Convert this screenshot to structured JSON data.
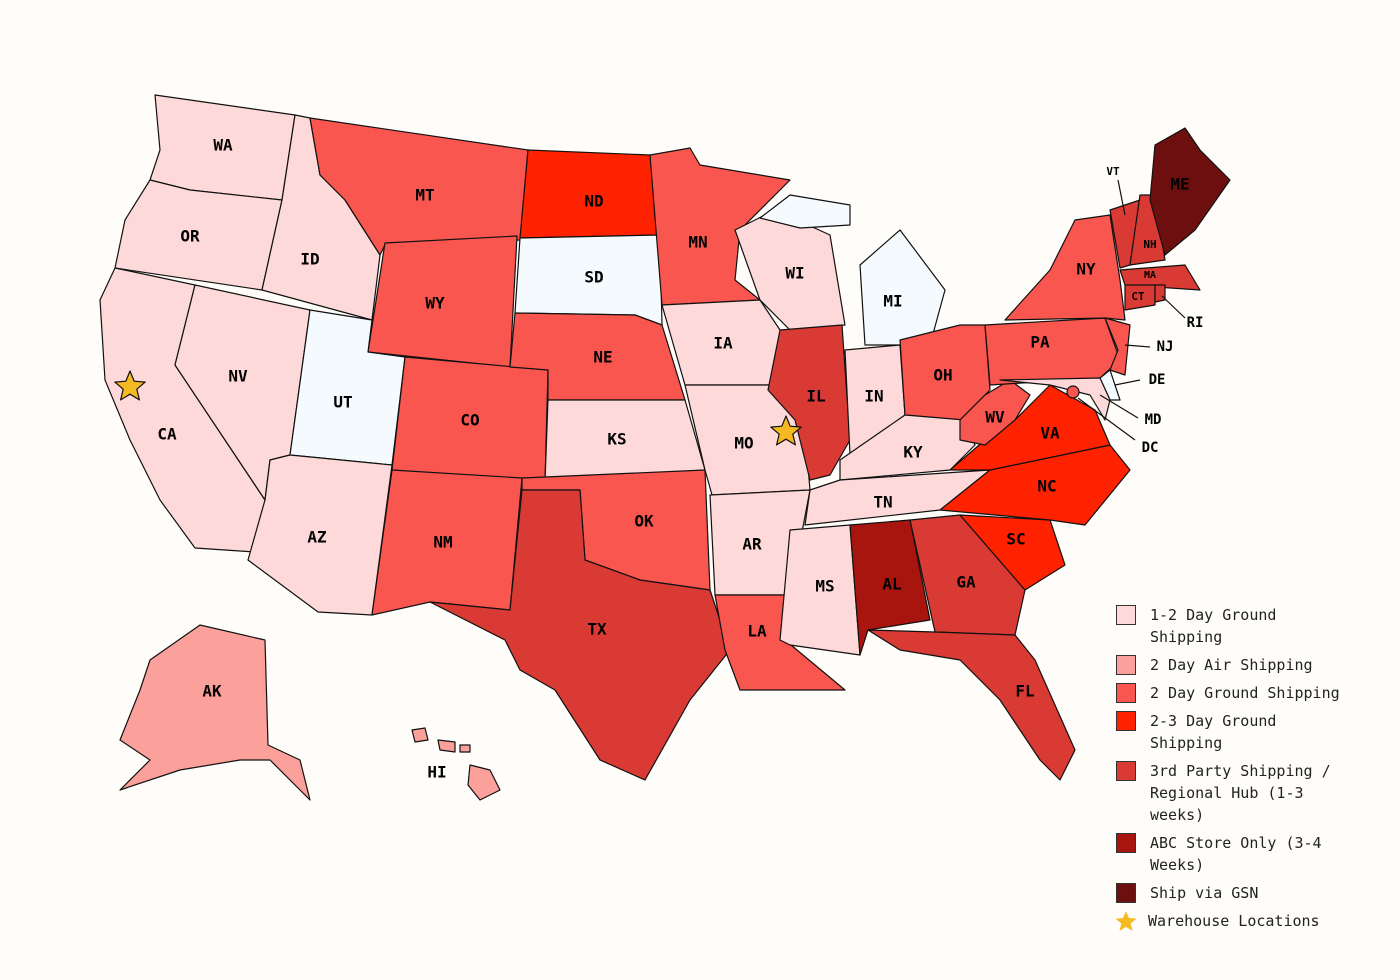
{
  "map": {
    "states": [
      {
        "label": "WA",
        "color": "#fdd9d9"
      },
      {
        "label": "OR",
        "color": "#fdd9d9"
      },
      {
        "label": "CA",
        "color": "#fdd9d9"
      },
      {
        "label": "NV",
        "color": "#fdd9d9"
      },
      {
        "label": "ID",
        "color": "#fdd9d9"
      },
      {
        "label": "MT",
        "color": "#f9564f"
      },
      {
        "label": "WY",
        "color": "#f9564f"
      },
      {
        "label": "UT",
        "color": "#f4fafd"
      },
      {
        "label": "AZ",
        "color": "#fdd9d9"
      },
      {
        "label": "CO",
        "color": "#f9564f"
      },
      {
        "label": "NM",
        "color": "#f9564f"
      },
      {
        "label": "ND",
        "color": "#ff2200"
      },
      {
        "label": "SD",
        "color": "#f4fafd"
      },
      {
        "label": "NE",
        "color": "#f9564f"
      },
      {
        "label": "KS",
        "color": "#fdd9d9"
      },
      {
        "label": "OK",
        "color": "#f9564f"
      },
      {
        "label": "TX",
        "color": "#d93a33"
      },
      {
        "label": "MN",
        "color": "#f9564f"
      },
      {
        "label": "IA",
        "color": "#fdd9d9"
      },
      {
        "label": "MO",
        "color": "#fdd9d9"
      },
      {
        "label": "AR",
        "color": "#fdd9d9"
      },
      {
        "label": "LA",
        "color": "#f9564f"
      },
      {
        "label": "WI",
        "color": "#fdd9d9"
      },
      {
        "label": "IL",
        "color": "#d93a33"
      },
      {
        "label": "MI",
        "color": "#f4fafd"
      },
      {
        "label": "IN",
        "color": "#fdd9d9"
      },
      {
        "label": "OH",
        "color": "#f9564f"
      },
      {
        "label": "KY",
        "color": "#fdd9d9"
      },
      {
        "label": "TN",
        "color": "#fdd9d9"
      },
      {
        "label": "MS",
        "color": "#fdd9d9"
      },
      {
        "label": "AL",
        "color": "#a8150f"
      },
      {
        "label": "GA",
        "color": "#d93a33"
      },
      {
        "label": "FL",
        "color": "#d93a33"
      },
      {
        "label": "SC",
        "color": "#ff2200"
      },
      {
        "label": "NC",
        "color": "#ff2200"
      },
      {
        "label": "VA",
        "color": "#ff2200"
      },
      {
        "label": "WV",
        "color": "#f9564f"
      },
      {
        "label": "PA",
        "color": "#f9564f"
      },
      {
        "label": "NY",
        "color": "#f9564f"
      },
      {
        "label": "NJ",
        "color": "#f9564f"
      },
      {
        "label": "DE",
        "color": "#f4fafd"
      },
      {
        "label": "MD",
        "color": "#fdd9d9"
      },
      {
        "label": "DC",
        "color": "#f9564f"
      },
      {
        "label": "MA",
        "color": "#d93a33"
      },
      {
        "label": "CT",
        "color": "#d93a33"
      },
      {
        "label": "RI",
        "color": "#d93a33"
      },
      {
        "label": "VT",
        "color": "#d93a33"
      },
      {
        "label": "NH",
        "color": "#d93a33"
      },
      {
        "label": "ME",
        "color": "#6e0f0f"
      },
      {
        "label": "AK",
        "color": "#fba09a"
      },
      {
        "label": "HI",
        "color": "#fba09a"
      }
    ],
    "warehouse_color": "#f5b922"
  },
  "legend": {
    "items": [
      {
        "label": "1-2 Day Ground Shipping",
        "color": "#fdd9d9"
      },
      {
        "label": "2 Day Air Shipping",
        "color": "#fba09a"
      },
      {
        "label": "2 Day Ground Shipping",
        "color": "#f9564f"
      },
      {
        "label": "2-3 Day Ground Shipping",
        "color": "#ff2200"
      },
      {
        "label": "3rd Party Shipping / Regional Hub (1-3 weeks)",
        "color": "#d93a33"
      },
      {
        "label": "ABC Store Only (3-4 Weeks)",
        "color": "#a8150f"
      },
      {
        "label": "Ship via GSN",
        "color": "#6e0f0f"
      }
    ],
    "warehouse_label": "Warehouse Locations"
  }
}
